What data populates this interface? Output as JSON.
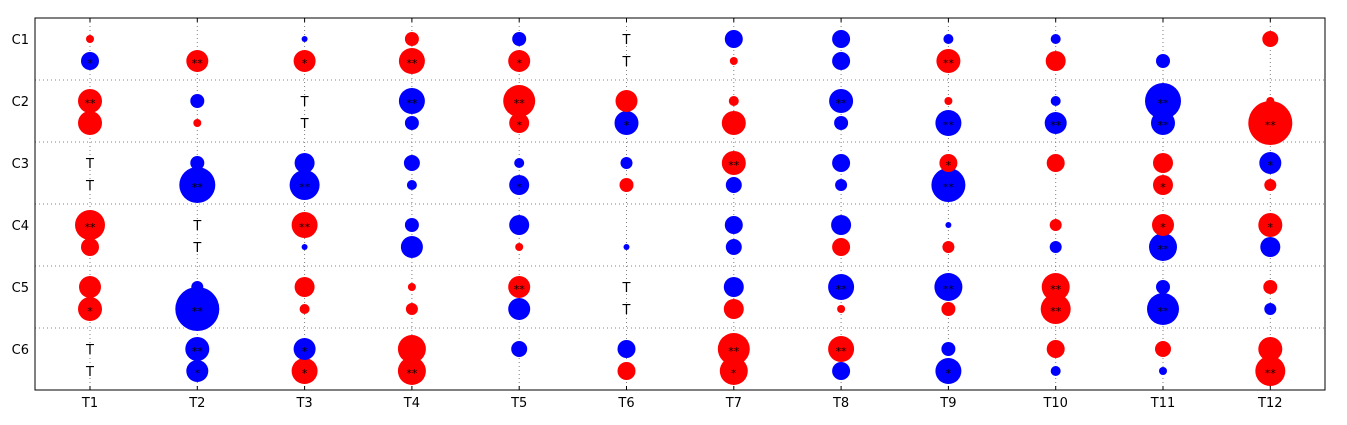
{
  "chart_data": {
    "type": "scatter",
    "title": "",
    "xlabel": "",
    "ylabel": "",
    "x_categories": [
      "T1",
      "T2",
      "T3",
      "T4",
      "T5",
      "T6",
      "T7",
      "T8",
      "T9",
      "T10",
      "T11",
      "T12"
    ],
    "y_categories": [
      "C1",
      "C2",
      "C3",
      "C4",
      "C5",
      "C6"
    ],
    "grid": true,
    "marker_colors": {
      "red": "#ff0000",
      "blue": "#0000ff"
    },
    "rows": [
      {
        "label": "C1",
        "top": [
          {
            "c": "red",
            "s": 4
          },
          {
            "c": null,
            "s": 0
          },
          {
            "c": "blue",
            "s": 3
          },
          {
            "c": "red",
            "s": 7
          },
          {
            "c": "blue",
            "s": 7
          },
          {
            "c": null,
            "s": 0,
            "label": "T"
          },
          {
            "c": "blue",
            "s": 9
          },
          {
            "c": "blue",
            "s": 9
          },
          {
            "c": "blue",
            "s": 5
          },
          {
            "c": "blue",
            "s": 5
          },
          {
            "c": null,
            "s": 0
          },
          {
            "c": "red",
            "s": 8
          }
        ],
        "bottom": [
          {
            "c": "blue",
            "s": 9,
            "label": "*"
          },
          {
            "c": "red",
            "s": 11,
            "label": "**"
          },
          {
            "c": "red",
            "s": 11,
            "label": "*"
          },
          {
            "c": "red",
            "s": 13,
            "label": "**"
          },
          {
            "c": "red",
            "s": 11,
            "label": "*"
          },
          {
            "c": null,
            "s": 0,
            "label": "T"
          },
          {
            "c": "red",
            "s": 4
          },
          {
            "c": "blue",
            "s": 9
          },
          {
            "c": "red",
            "s": 12,
            "label": "**"
          },
          {
            "c": "red",
            "s": 10
          },
          {
            "c": "blue",
            "s": 7
          },
          {
            "c": null,
            "s": 0
          }
        ]
      },
      {
        "label": "C2",
        "top": [
          {
            "c": "red",
            "s": 12,
            "label": "**"
          },
          {
            "c": "blue",
            "s": 7
          },
          {
            "c": null,
            "s": 0,
            "label": "T"
          },
          {
            "c": "blue",
            "s": 13,
            "label": "**"
          },
          {
            "c": "red",
            "s": 16,
            "label": "**"
          },
          {
            "c": "red",
            "s": 11
          },
          {
            "c": "red",
            "s": 5
          },
          {
            "c": "blue",
            "s": 12,
            "label": "**"
          },
          {
            "c": "red",
            "s": 4
          },
          {
            "c": "blue",
            "s": 5
          },
          {
            "c": "blue",
            "s": 18,
            "label": "**"
          },
          {
            "c": "red",
            "s": 4
          }
        ],
        "bottom": [
          {
            "c": "red",
            "s": 12
          },
          {
            "c": "red",
            "s": 4
          },
          {
            "c": null,
            "s": 0,
            "label": "T"
          },
          {
            "c": "blue",
            "s": 7
          },
          {
            "c": "red",
            "s": 10,
            "label": "*"
          },
          {
            "c": "blue",
            "s": 12,
            "label": "*"
          },
          {
            "c": "red",
            "s": 12
          },
          {
            "c": "blue",
            "s": 7
          },
          {
            "c": "blue",
            "s": 13,
            "label": "**"
          },
          {
            "c": "blue",
            "s": 11,
            "label": "**"
          },
          {
            "c": "blue",
            "s": 12,
            "label": "**"
          },
          {
            "c": "red",
            "s": 22,
            "label": "**"
          }
        ]
      },
      {
        "label": "C3",
        "top": [
          {
            "c": null,
            "s": 0,
            "label": "T"
          },
          {
            "c": "blue",
            "s": 7
          },
          {
            "c": "blue",
            "s": 10
          },
          {
            "c": "blue",
            "s": 8
          },
          {
            "c": "blue",
            "s": 5
          },
          {
            "c": "blue",
            "s": 6
          },
          {
            "c": "red",
            "s": 12,
            "label": "**"
          },
          {
            "c": "blue",
            "s": 9
          },
          {
            "c": "red",
            "s": 9,
            "label": "*"
          },
          {
            "c": "red",
            "s": 9
          },
          {
            "c": "red",
            "s": 10
          },
          {
            "c": "blue",
            "s": 11,
            "label": "*"
          }
        ],
        "bottom": [
          {
            "c": null,
            "s": 0,
            "label": "T"
          },
          {
            "c": "blue",
            "s": 18,
            "label": "**"
          },
          {
            "c": "blue",
            "s": 15,
            "label": "**"
          },
          {
            "c": "blue",
            "s": 5
          },
          {
            "c": "blue",
            "s": 10,
            "label": "*"
          },
          {
            "c": "red",
            "s": 7
          },
          {
            "c": "blue",
            "s": 8
          },
          {
            "c": "blue",
            "s": 6
          },
          {
            "c": "blue",
            "s": 17,
            "label": "**"
          },
          {
            "c": null,
            "s": 0
          },
          {
            "c": "red",
            "s": 10,
            "label": "*"
          },
          {
            "c": "red",
            "s": 6
          }
        ]
      },
      {
        "label": "C4",
        "top": [
          {
            "c": "red",
            "s": 15,
            "label": "**"
          },
          {
            "c": null,
            "s": 0,
            "label": "T"
          },
          {
            "c": "red",
            "s": 13,
            "label": "**"
          },
          {
            "c": "blue",
            "s": 7
          },
          {
            "c": "blue",
            "s": 10
          },
          {
            "c": null,
            "s": 0
          },
          {
            "c": "blue",
            "s": 9
          },
          {
            "c": "blue",
            "s": 10
          },
          {
            "c": "blue",
            "s": 3
          },
          {
            "c": "red",
            "s": 6
          },
          {
            "c": "red",
            "s": 11,
            "label": "*"
          },
          {
            "c": "red",
            "s": 12,
            "label": "*"
          }
        ],
        "bottom": [
          {
            "c": "red",
            "s": 9
          },
          {
            "c": null,
            "s": 0,
            "label": "T"
          },
          {
            "c": "blue",
            "s": 3
          },
          {
            "c": "blue",
            "s": 11
          },
          {
            "c": "red",
            "s": 4
          },
          {
            "c": "blue",
            "s": 3
          },
          {
            "c": "blue",
            "s": 8
          },
          {
            "c": "red",
            "s": 9
          },
          {
            "c": "red",
            "s": 6
          },
          {
            "c": "blue",
            "s": 6
          },
          {
            "c": "blue",
            "s": 14,
            "label": "**"
          },
          {
            "c": "blue",
            "s": 10
          }
        ]
      },
      {
        "label": "C5",
        "top": [
          {
            "c": "red",
            "s": 11
          },
          {
            "c": "blue",
            "s": 6
          },
          {
            "c": "red",
            "s": 10
          },
          {
            "c": "red",
            "s": 4
          },
          {
            "c": "red",
            "s": 11,
            "label": "**"
          },
          {
            "c": null,
            "s": 0,
            "label": "T"
          },
          {
            "c": "blue",
            "s": 10
          },
          {
            "c": "blue",
            "s": 13,
            "label": "**"
          },
          {
            "c": "blue",
            "s": 14,
            "label": "**"
          },
          {
            "c": "red",
            "s": 14,
            "label": "**"
          },
          {
            "c": "blue",
            "s": 7
          },
          {
            "c": "red",
            "s": 7
          }
        ],
        "bottom": [
          {
            "c": "red",
            "s": 12,
            "label": "*"
          },
          {
            "c": "blue",
            "s": 22,
            "label": "**"
          },
          {
            "c": "red",
            "s": 5
          },
          {
            "c": "red",
            "s": 6
          },
          {
            "c": "blue",
            "s": 11
          },
          {
            "c": null,
            "s": 0,
            "label": "T"
          },
          {
            "c": "red",
            "s": 10
          },
          {
            "c": "red",
            "s": 4
          },
          {
            "c": "red",
            "s": 7
          },
          {
            "c": "red",
            "s": 15,
            "label": "**"
          },
          {
            "c": "blue",
            "s": 16,
            "label": "**"
          },
          {
            "c": "blue",
            "s": 6
          }
        ]
      },
      {
        "label": "C6",
        "top": [
          {
            "c": null,
            "s": 0,
            "label": "T"
          },
          {
            "c": "blue",
            "s": 12,
            "label": "**"
          },
          {
            "c": "blue",
            "s": 11,
            "label": "*"
          },
          {
            "c": "red",
            "s": 14
          },
          {
            "c": "blue",
            "s": 8
          },
          {
            "c": "blue",
            "s": 9
          },
          {
            "c": "red",
            "s": 16,
            "label": "**"
          },
          {
            "c": "red",
            "s": 13,
            "label": "**"
          },
          {
            "c": "blue",
            "s": 7
          },
          {
            "c": "red",
            "s": 9
          },
          {
            "c": "red",
            "s": 8
          },
          {
            "c": "red",
            "s": 12
          }
        ],
        "bottom": [
          {
            "c": null,
            "s": 0,
            "label": "T"
          },
          {
            "c": "blue",
            "s": 11,
            "label": "*"
          },
          {
            "c": "red",
            "s": 13,
            "label": "*"
          },
          {
            "c": "red",
            "s": 14,
            "label": "**"
          },
          {
            "c": null,
            "s": 0
          },
          {
            "c": "red",
            "s": 9
          },
          {
            "c": "red",
            "s": 14,
            "label": "*"
          },
          {
            "c": "blue",
            "s": 9
          },
          {
            "c": "blue",
            "s": 13,
            "label": "*"
          },
          {
            "c": "blue",
            "s": 5
          },
          {
            "c": "blue",
            "s": 4
          },
          {
            "c": "red",
            "s": 15,
            "label": "**"
          }
        ]
      }
    ]
  }
}
